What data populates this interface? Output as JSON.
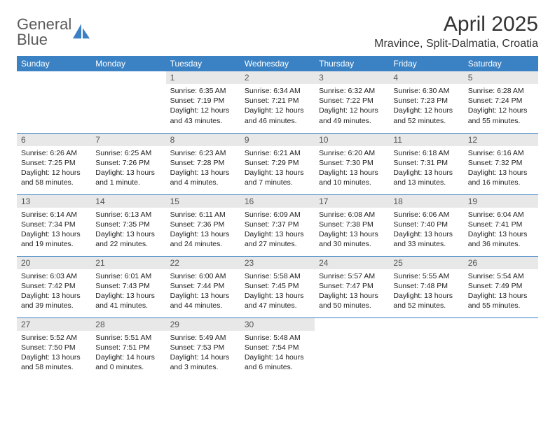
{
  "logo": {
    "line1": "General",
    "line2": "Blue"
  },
  "title": "April 2025",
  "location": "Mravince, Split-Dalmatia, Croatia",
  "colors": {
    "header_bg": "#3b82c4",
    "header_text": "#ffffff",
    "daynum_bg": "#e8e8e8",
    "border": "#3b82c4",
    "logo_gray": "#5a5a5a",
    "logo_blue": "#3b7fc4"
  },
  "day_headers": [
    "Sunday",
    "Monday",
    "Tuesday",
    "Wednesday",
    "Thursday",
    "Friday",
    "Saturday"
  ],
  "weeks": [
    [
      {
        "empty": true
      },
      {
        "empty": true
      },
      {
        "n": "1",
        "sr": "6:35 AM",
        "ss": "7:19 PM",
        "dl": "12 hours and 43 minutes."
      },
      {
        "n": "2",
        "sr": "6:34 AM",
        "ss": "7:21 PM",
        "dl": "12 hours and 46 minutes."
      },
      {
        "n": "3",
        "sr": "6:32 AM",
        "ss": "7:22 PM",
        "dl": "12 hours and 49 minutes."
      },
      {
        "n": "4",
        "sr": "6:30 AM",
        "ss": "7:23 PM",
        "dl": "12 hours and 52 minutes."
      },
      {
        "n": "5",
        "sr": "6:28 AM",
        "ss": "7:24 PM",
        "dl": "12 hours and 55 minutes."
      }
    ],
    [
      {
        "n": "6",
        "sr": "6:26 AM",
        "ss": "7:25 PM",
        "dl": "12 hours and 58 minutes."
      },
      {
        "n": "7",
        "sr": "6:25 AM",
        "ss": "7:26 PM",
        "dl": "13 hours and 1 minute."
      },
      {
        "n": "8",
        "sr": "6:23 AM",
        "ss": "7:28 PM",
        "dl": "13 hours and 4 minutes."
      },
      {
        "n": "9",
        "sr": "6:21 AM",
        "ss": "7:29 PM",
        "dl": "13 hours and 7 minutes."
      },
      {
        "n": "10",
        "sr": "6:20 AM",
        "ss": "7:30 PM",
        "dl": "13 hours and 10 minutes."
      },
      {
        "n": "11",
        "sr": "6:18 AM",
        "ss": "7:31 PM",
        "dl": "13 hours and 13 minutes."
      },
      {
        "n": "12",
        "sr": "6:16 AM",
        "ss": "7:32 PM",
        "dl": "13 hours and 16 minutes."
      }
    ],
    [
      {
        "n": "13",
        "sr": "6:14 AM",
        "ss": "7:34 PM",
        "dl": "13 hours and 19 minutes."
      },
      {
        "n": "14",
        "sr": "6:13 AM",
        "ss": "7:35 PM",
        "dl": "13 hours and 22 minutes."
      },
      {
        "n": "15",
        "sr": "6:11 AM",
        "ss": "7:36 PM",
        "dl": "13 hours and 24 minutes."
      },
      {
        "n": "16",
        "sr": "6:09 AM",
        "ss": "7:37 PM",
        "dl": "13 hours and 27 minutes."
      },
      {
        "n": "17",
        "sr": "6:08 AM",
        "ss": "7:38 PM",
        "dl": "13 hours and 30 minutes."
      },
      {
        "n": "18",
        "sr": "6:06 AM",
        "ss": "7:40 PM",
        "dl": "13 hours and 33 minutes."
      },
      {
        "n": "19",
        "sr": "6:04 AM",
        "ss": "7:41 PM",
        "dl": "13 hours and 36 minutes."
      }
    ],
    [
      {
        "n": "20",
        "sr": "6:03 AM",
        "ss": "7:42 PM",
        "dl": "13 hours and 39 minutes."
      },
      {
        "n": "21",
        "sr": "6:01 AM",
        "ss": "7:43 PM",
        "dl": "13 hours and 41 minutes."
      },
      {
        "n": "22",
        "sr": "6:00 AM",
        "ss": "7:44 PM",
        "dl": "13 hours and 44 minutes."
      },
      {
        "n": "23",
        "sr": "5:58 AM",
        "ss": "7:45 PM",
        "dl": "13 hours and 47 minutes."
      },
      {
        "n": "24",
        "sr": "5:57 AM",
        "ss": "7:47 PM",
        "dl": "13 hours and 50 minutes."
      },
      {
        "n": "25",
        "sr": "5:55 AM",
        "ss": "7:48 PM",
        "dl": "13 hours and 52 minutes."
      },
      {
        "n": "26",
        "sr": "5:54 AM",
        "ss": "7:49 PM",
        "dl": "13 hours and 55 minutes."
      }
    ],
    [
      {
        "n": "27",
        "sr": "5:52 AM",
        "ss": "7:50 PM",
        "dl": "13 hours and 58 minutes."
      },
      {
        "n": "28",
        "sr": "5:51 AM",
        "ss": "7:51 PM",
        "dl": "14 hours and 0 minutes."
      },
      {
        "n": "29",
        "sr": "5:49 AM",
        "ss": "7:53 PM",
        "dl": "14 hours and 3 minutes."
      },
      {
        "n": "30",
        "sr": "5:48 AM",
        "ss": "7:54 PM",
        "dl": "14 hours and 6 minutes."
      },
      {
        "empty": true
      },
      {
        "empty": true
      },
      {
        "empty": true
      }
    ]
  ],
  "labels": {
    "sunrise": "Sunrise: ",
    "sunset": "Sunset: ",
    "daylight": "Daylight: "
  }
}
